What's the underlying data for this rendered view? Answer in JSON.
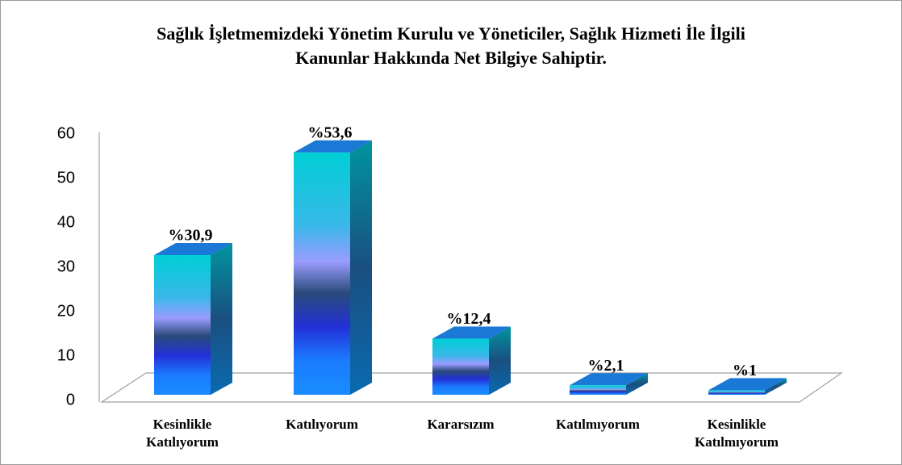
{
  "chart_data": {
    "type": "bar3d",
    "title": "Sağlık İşletmemizdeki Yönetim Kurulu ve Yöneticiler, Sağlık Hizmeti İle İlgili Kanunlar Hakkında Net Bilgiye Sahiptir.",
    "categories": [
      "Kesinlikle Katılıyorum",
      "Katılıyorum",
      "Kararsızım",
      "Katılmıyorum",
      "Kesinlikle Katılmıyorum"
    ],
    "values": [
      30.9,
      53.6,
      12.4,
      2.1,
      1
    ],
    "value_labels": [
      "%30,9",
      "%53,6",
      "%12,4",
      "%2,1",
      "%1"
    ],
    "ylim": [
      0,
      60
    ],
    "yticks": [
      0,
      10,
      20,
      30,
      40,
      50,
      60
    ],
    "grid": false
  }
}
